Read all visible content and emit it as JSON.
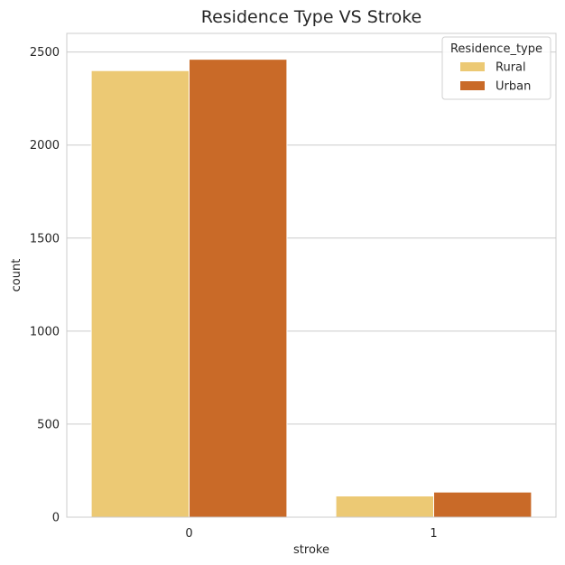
{
  "chart_data": {
    "type": "bar",
    "title": "Residence Type VS Stroke",
    "xlabel": "stroke",
    "ylabel": "count",
    "categories": [
      "0",
      "1"
    ],
    "series": [
      {
        "name": "Rural",
        "color": "#ecc974",
        "values": [
          2400,
          114
        ]
      },
      {
        "name": "Urban",
        "color": "#c96a28",
        "values": [
          2461,
          135
        ]
      }
    ],
    "ylim": [
      0,
      2600
    ],
    "yticks": [
      0,
      500,
      1000,
      1500,
      2000,
      2500
    ],
    "grid": "y",
    "legend": {
      "title": "Residence_type",
      "placement": "top-right"
    }
  }
}
